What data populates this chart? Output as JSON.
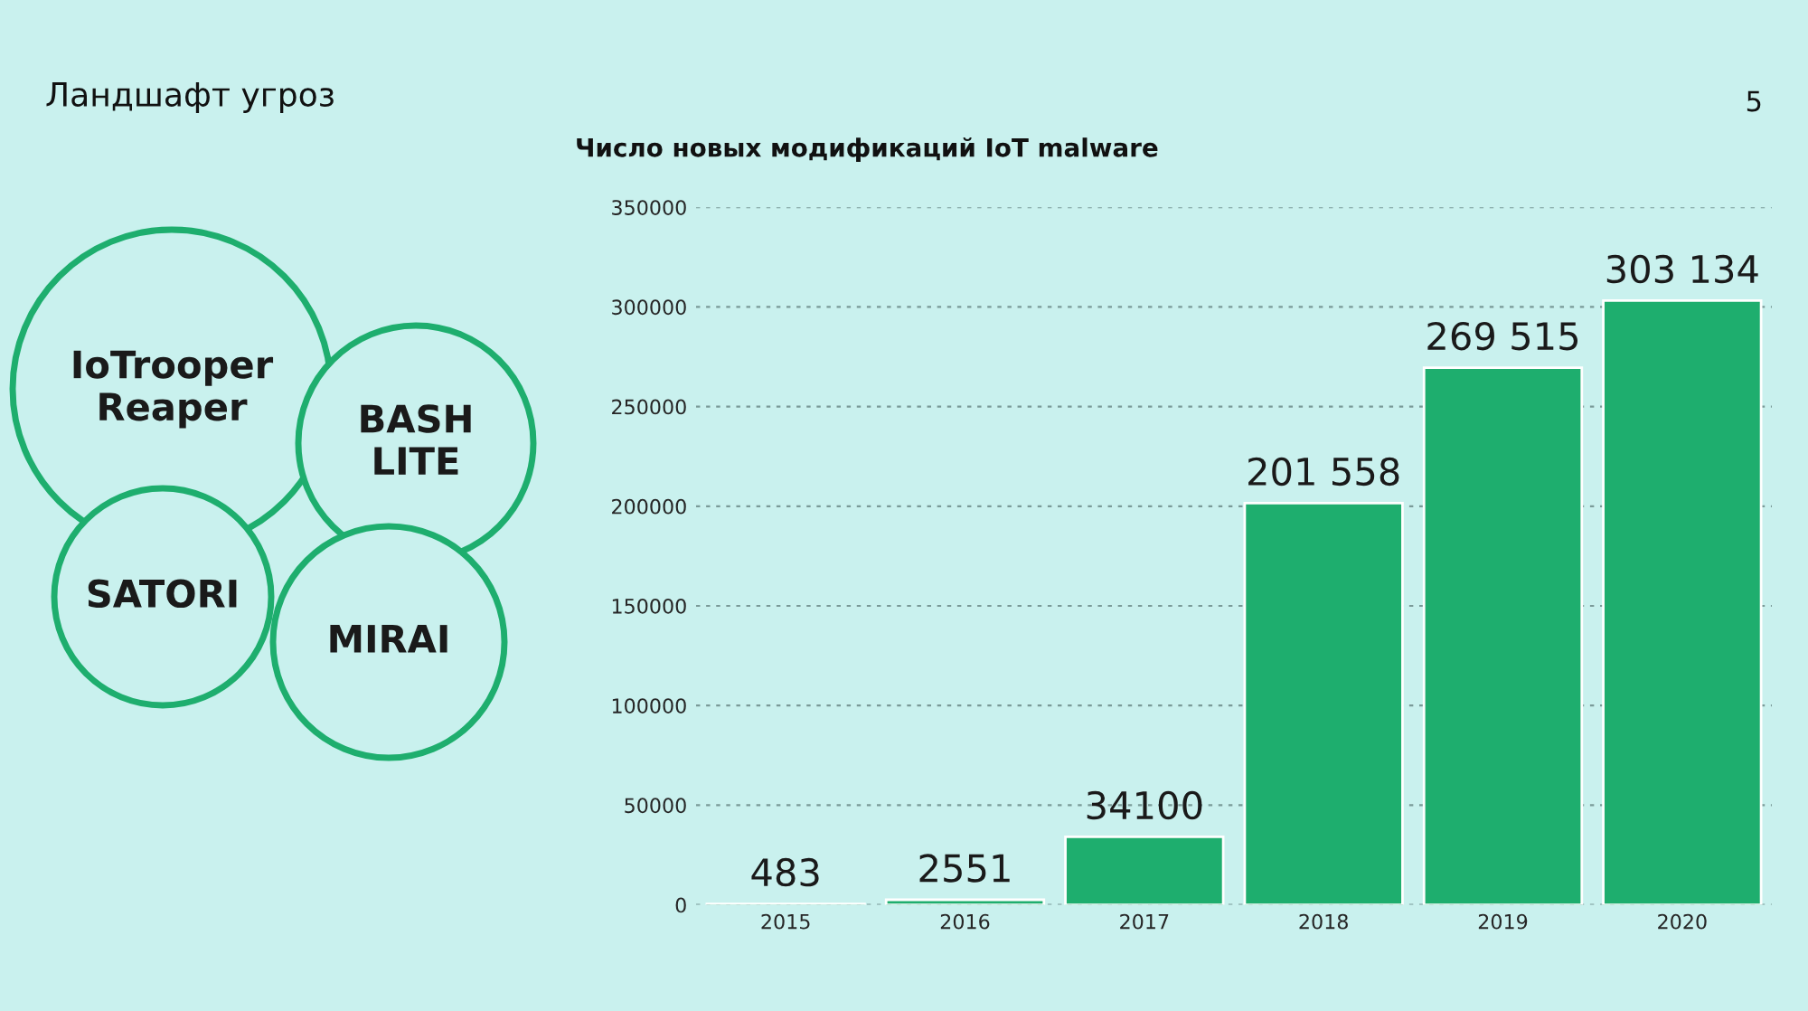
{
  "chart_data": {
    "type": "bar",
    "title": "Ландшафт угроз",
    "subtitle": "Число новых модификаций IoT malware",
    "categories": [
      "2015",
      "2016",
      "2017",
      "2018",
      "2019",
      "2020"
    ],
    "values": [
      483,
      2551,
      34100,
      201558,
      269515,
      303134
    ],
    "value_labels": [
      "483",
      "2551",
      "34100",
      "201 558",
      "269 515",
      "303 134"
    ],
    "color": "#1eae6e",
    "ylim": [
      0,
      350000
    ],
    "yticks": [
      0,
      50000,
      100000,
      150000,
      200000,
      250000,
      300000,
      350000
    ],
    "grid": "y",
    "annotations": [
      "5",
      "IoTrooper\nReaper",
      "BASH\nLITE",
      "SATORI",
      "MIRAI"
    ]
  }
}
